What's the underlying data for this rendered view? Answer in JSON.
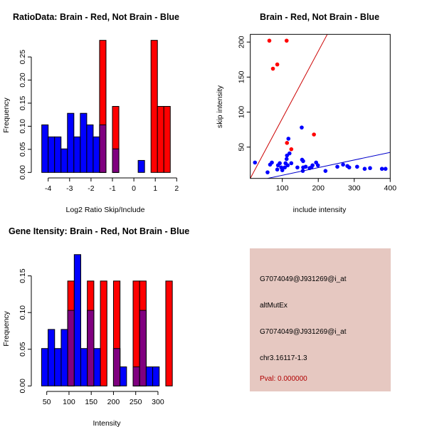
{
  "chart_data": [
    {
      "type": "bar",
      "title": "RatioData: Brain - Red, Not Brain - Blue",
      "xlabel": "Log2 Ratio Skip/Include",
      "ylabel": "Frequency",
      "bin_start": -4.3,
      "bin_width": 0.3,
      "xticks": [
        -4,
        -3,
        -2,
        -1,
        0,
        1,
        2
      ],
      "yticks": [
        "0.00",
        "0.05",
        "0.10",
        "0.15",
        "0.20",
        "0.25"
      ],
      "series": [
        {
          "name": "Not Brain",
          "color": "#0000ff",
          "values": [
            0.103,
            0.077,
            0.077,
            0.051,
            0.128,
            0.077,
            0.128,
            0.103,
            0.077,
            0.103,
            0,
            0.051,
            0,
            0,
            0,
            0.026,
            0,
            0,
            0,
            0
          ]
        },
        {
          "name": "Brain",
          "color": "#ff0000",
          "values": [
            0,
            0,
            0,
            0,
            0,
            0,
            0,
            0,
            0,
            0.286,
            0,
            0.143,
            0,
            0,
            0,
            0,
            0,
            0.286,
            0.143,
            0.143
          ]
        }
      ],
      "overlap_color": "#800080"
    },
    {
      "type": "scatter",
      "title": "Brain - Red, Not Brain - Blue",
      "xlabel": "include intensity",
      "ylabel": "skip intensity",
      "xlim": [
        11,
        400
      ],
      "ylim": [
        5.3,
        211
      ],
      "xticks": [
        100,
        200,
        300,
        400
      ],
      "yticks": [
        50,
        100,
        150,
        200
      ],
      "series": [
        {
          "name": "Brain",
          "color": "#ff0000",
          "points": [
            [
              64,
              202
            ],
            [
              112,
              202
            ],
            [
              74,
              162
            ],
            [
              86,
              168
            ],
            [
              113,
              56
            ],
            [
              125,
              47
            ],
            [
              188,
              68
            ]
          ]
        },
        {
          "name": "Not Brain",
          "color": "#0000ff",
          "points": [
            [
              24,
              28
            ],
            [
              59,
              14
            ],
            [
              66,
              25
            ],
            [
              71,
              28
            ],
            [
              86,
              18
            ],
            [
              88,
              24
            ],
            [
              93,
              27
            ],
            [
              97,
              21
            ],
            [
              100,
              17
            ],
            [
              107,
              21
            ],
            [
              109,
              27
            ],
            [
              112,
              33
            ],
            [
              113,
              38
            ],
            [
              117,
              62
            ],
            [
              120,
              41
            ],
            [
              115,
              24
            ],
            [
              125,
              27
            ],
            [
              142,
              21
            ],
            [
              154,
              78
            ],
            [
              155,
              32
            ],
            [
              158,
              30
            ],
            [
              157,
              16
            ],
            [
              158,
              21
            ],
            [
              165,
              22
            ],
            [
              176,
              20
            ],
            [
              181,
              21
            ],
            [
              184,
              24
            ],
            [
              194,
              28
            ],
            [
              199,
              24
            ],
            [
              220,
              16
            ],
            [
              253,
              22
            ],
            [
              269,
              25
            ],
            [
              281,
              23
            ],
            [
              286,
              21
            ],
            [
              308,
              22
            ],
            [
              329,
              19
            ],
            [
              344,
              20
            ],
            [
              377,
              19
            ],
            [
              387,
              19
            ]
          ]
        }
      ],
      "lines": [
        {
          "color": "#cc0000",
          "from": [
            11,
            5.3
          ],
          "to": [
            225,
            211
          ]
        },
        {
          "color": "#0000cc",
          "from": [
            59,
            5.3
          ],
          "to": [
            400,
            42.5
          ]
        }
      ]
    },
    {
      "type": "bar",
      "title": "Gene Itensity: Brain - Red, Not Brain - Blue",
      "xlabel": "Intensity",
      "ylabel": "Frequency",
      "bin_start": 38.3,
      "bin_width": 14.7,
      "xticks": [
        50,
        100,
        150,
        200,
        250,
        300
      ],
      "yticks": [
        "0.00",
        "0.05",
        "0.10",
        "0.15"
      ],
      "series": [
        {
          "name": "Not Brain",
          "color": "#0000ff",
          "values": [
            0.051,
            0.077,
            0.051,
            0.077,
            0.103,
            0.179,
            0.051,
            0.103,
            0.051,
            0,
            0,
            0.051,
            0.026,
            0,
            0.026,
            0.103,
            0.026,
            0.026,
            0,
            0
          ]
        },
        {
          "name": "Brain",
          "color": "#ff0000",
          "values": [
            0,
            0,
            0,
            0,
            0.143,
            0,
            0,
            0.143,
            0,
            0.143,
            0,
            0.143,
            0,
            0,
            0.143,
            0.143,
            0,
            0,
            0,
            0.143
          ]
        }
      ],
      "overlap_color": "#800080"
    }
  ],
  "info": {
    "probe1": "G7074049@J931269@i_at",
    "event_type": "altMutEx",
    "probe2": "G7074049@J931269@i_at",
    "location": "chr3.16117-1.3",
    "pval": "Pval: 0.000000",
    "pval_color": "#b00000",
    "background": "#e6c8c1"
  }
}
